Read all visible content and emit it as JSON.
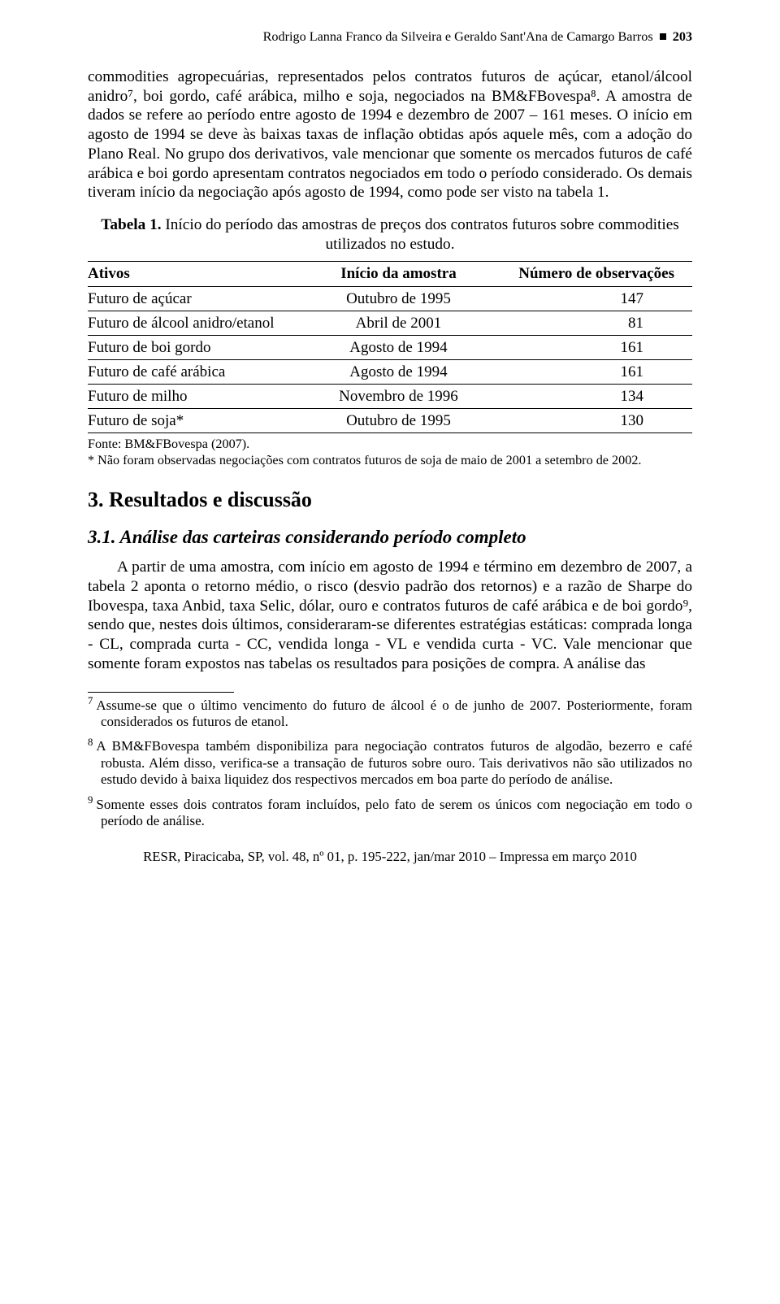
{
  "running_head": {
    "authors": "Rodrigo Lanna Franco da Silveira e Geraldo Sant'Ana de Camargo Barros",
    "page_number": "203"
  },
  "para1": "commodities agropecuárias, representados pelos contratos futuros de açúcar, etanol/álcool anidro⁷, boi gordo, café arábica, milho e soja, negociados na BM&FBovespa⁸. A amostra de dados se refere ao período entre agosto de 1994 e dezembro de 2007 – 161 meses. O início em agosto de 1994 se deve às baixas taxas de inflação obtidas após aquele mês, com a adoção do Plano Real. No grupo dos derivativos, vale mencionar que somente os mercados futuros de café arábica e boi gordo apresentam contratos negociados em todo o período considerado. Os demais tiveram início da negociação após agosto de 1994, como pode ser visto na tabela 1.",
  "table1": {
    "label": "Tabela 1.",
    "caption": "Início do período das amostras de preços dos contratos futuros sobre commodities utilizados no estudo.",
    "columns": [
      "Ativos",
      "Início da amostra",
      "Número de observações"
    ],
    "rows": [
      [
        "Futuro de açúcar",
        "Outubro de 1995",
        "147"
      ],
      [
        "Futuro de álcool anidro/etanol",
        "Abril de 2001",
        "81"
      ],
      [
        "Futuro de boi gordo",
        "Agosto de 1994",
        "161"
      ],
      [
        "Futuro de café arábica",
        "Agosto de 1994",
        "161"
      ],
      [
        "Futuro de milho",
        "Novembro de 1996",
        "134"
      ],
      [
        "Futuro de soja*",
        "Outubro de 1995",
        "130"
      ]
    ],
    "footnote_source": "Fonte: BM&FBovespa (2007).",
    "footnote_star": "* Não foram observadas negociações com contratos futuros de soja de maio de 2001 a setembro de 2002."
  },
  "section3_heading": "3. Resultados e discussão",
  "section31_heading": "3.1. Análise das carteiras considerando período completo",
  "para2": "A partir de uma amostra, com início em agosto de 1994 e término em dezembro de 2007, a tabela 2 aponta o retorno médio, o risco (desvio padrão dos retornos) e a razão de Sharpe do Ibovespa, taxa Anbid, taxa Selic, dólar, ouro e contratos futuros de café arábica e de boi gordo⁹, sendo que, nestes dois últimos, consideraram-se diferentes estratégias estáticas: comprada longa - CL, comprada curta - CC, vendida longa - VL e vendida curta - VC. Vale mencionar que somente foram expostos nas tabelas os resultados para posições de compra. A análise das",
  "footnotes": {
    "7": "Assume-se que o último vencimento do futuro de álcool é o de junho de 2007. Posteriormente, foram considerados os futuros de etanol.",
    "8": "A BM&FBovespa também disponibiliza para negociação contratos futuros de algodão, bezerro e café robusta. Além disso, verifica-se a transação de futuros sobre ouro. Tais derivativos não são utilizados no estudo devido à baixa liquidez dos respectivos mercados em boa parte do período de análise.",
    "9": "Somente esses dois contratos foram incluídos, pelo fato de serem os únicos com negociação em todo o período de análise."
  },
  "page_footer": "RESR, Piracicaba, SP, vol. 48, nº 01, p. 195-222, jan/mar 2010 – Impressa em março 2010"
}
